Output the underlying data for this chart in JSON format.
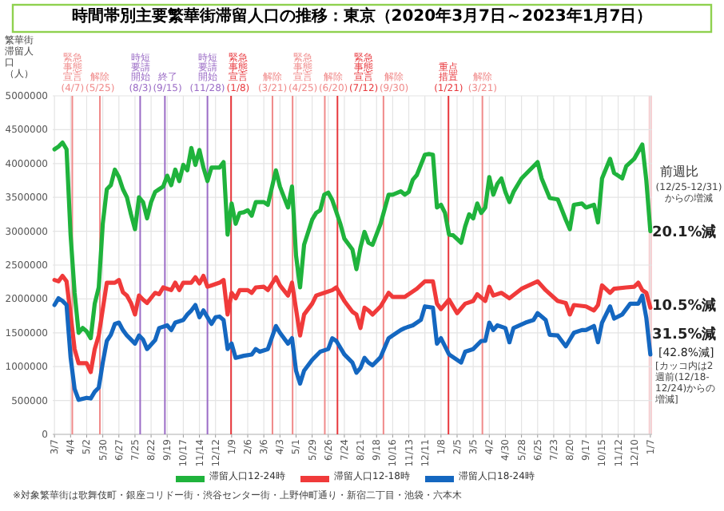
{
  "chart_data": {
    "type": "line",
    "title": "時間帯別主要繁華街滞留人口の推移：東京（2020年3月7日～2023年1月7日）",
    "ylabel": "繁華街滞留人口（人）",
    "xlim": [
      "2020-03-04",
      "2023-01-10"
    ],
    "ylim": [
      0,
      5000000
    ],
    "yticks": [
      0,
      500000,
      1000000,
      1500000,
      2000000,
      2500000,
      3000000,
      3500000,
      4000000,
      4500000,
      5000000
    ],
    "xticks": [
      {
        "value": "2020-03-07",
        "label": "3/7"
      },
      {
        "value": "2020-04-04",
        "label": "4/4"
      },
      {
        "value": "2020-05-02",
        "label": "5/2"
      },
      {
        "value": "2020-05-30",
        "label": "5/30"
      },
      {
        "value": "2020-06-27",
        "label": "6/27"
      },
      {
        "value": "2020-07-25",
        "label": "7/25"
      },
      {
        "value": "2020-08-22",
        "label": "8/22"
      },
      {
        "value": "2020-09-19",
        "label": "9/19"
      },
      {
        "value": "2020-10-17",
        "label": "10/17"
      },
      {
        "value": "2020-11-14",
        "label": "11/14"
      },
      {
        "value": "2020-12-12",
        "label": "12/12"
      },
      {
        "value": "2021-01-09",
        "label": "1/9"
      },
      {
        "value": "2021-02-06",
        "label": "2/6"
      },
      {
        "value": "2021-03-06",
        "label": "3/6"
      },
      {
        "value": "2021-04-03",
        "label": "4/3"
      },
      {
        "value": "2021-05-01",
        "label": "5/1"
      },
      {
        "value": "2021-05-29",
        "label": "5/29"
      },
      {
        "value": "2021-06-26",
        "label": "6/26"
      },
      {
        "value": "2021-07-24",
        "label": "7/24"
      },
      {
        "value": "2021-08-21",
        "label": "8/21"
      },
      {
        "value": "2021-09-18",
        "label": "9/18"
      },
      {
        "value": "2021-10-16",
        "label": "10/16"
      },
      {
        "value": "2021-11-13",
        "label": "11/13"
      },
      {
        "value": "2021-12-11",
        "label": "12/11"
      },
      {
        "value": "2022-01-08",
        "label": "1/8"
      },
      {
        "value": "2022-02-05",
        "label": "2/5"
      },
      {
        "value": "2022-03-05",
        "label": "3/5"
      },
      {
        "value": "2022-04-02",
        "label": "4/2"
      },
      {
        "value": "2022-04-30",
        "label": "4/30"
      },
      {
        "value": "2022-05-28",
        "label": "5/28"
      },
      {
        "value": "2022-06-25",
        "label": "6/25"
      },
      {
        "value": "2022-07-23",
        "label": "7/23"
      },
      {
        "value": "2022-08-20",
        "label": "8/20"
      },
      {
        "value": "2022-09-17",
        "label": "9/17"
      },
      {
        "value": "2022-10-15",
        "label": "10/15"
      },
      {
        "value": "2022-11-12",
        "label": "11/12"
      },
      {
        "value": "2022-12-10",
        "label": "12/10"
      },
      {
        "value": "2023-01-07",
        "label": "1/7"
      }
    ],
    "grid": true,
    "legend": "bottom",
    "marker": "none",
    "line_style": "solid",
    "series": [
      {
        "name": "滞留人口12-24時",
        "color": "#1fb33c",
        "x": [
          "2020-03-07",
          "2020-03-14",
          "2020-03-21",
          "2020-03-28",
          "2020-04-04",
          "2020-04-11",
          "2020-04-18",
          "2020-04-25",
          "2020-05-02",
          "2020-05-09",
          "2020-05-16",
          "2020-05-23",
          "2020-05-30",
          "2020-06-06",
          "2020-06-13",
          "2020-06-20",
          "2020-06-27",
          "2020-07-04",
          "2020-07-11",
          "2020-07-18",
          "2020-07-25",
          "2020-08-01",
          "2020-08-08",
          "2020-08-15",
          "2020-08-22",
          "2020-08-29",
          "2020-09-05",
          "2020-09-12",
          "2020-09-19",
          "2020-09-26",
          "2020-10-03",
          "2020-10-10",
          "2020-10-17",
          "2020-10-24",
          "2020-10-31",
          "2020-11-07",
          "2020-11-14",
          "2020-11-21",
          "2020-11-28",
          "2020-12-05",
          "2020-12-19",
          "2020-12-26",
          "2021-01-02",
          "2021-01-09",
          "2021-01-16",
          "2021-01-23",
          "2021-01-30",
          "2021-02-06",
          "2021-02-13",
          "2021-02-20",
          "2021-03-06",
          "2021-03-13",
          "2021-03-27",
          "2021-04-03",
          "2021-04-17",
          "2021-04-24",
          "2021-05-01",
          "2021-05-08",
          "2021-05-15",
          "2021-05-29",
          "2021-06-05",
          "2021-06-12",
          "2021-06-19",
          "2021-06-26",
          "2021-07-03",
          "2021-07-17",
          "2021-07-24",
          "2021-08-07",
          "2021-08-14",
          "2021-08-21",
          "2021-08-28",
          "2021-09-04",
          "2021-09-11",
          "2021-09-25",
          "2021-10-09",
          "2021-10-16",
          "2021-10-30",
          "2021-11-06",
          "2021-11-13",
          "2021-11-20",
          "2021-11-27",
          "2021-12-11",
          "2021-12-18",
          "2021-12-25",
          "2022-01-01",
          "2022-01-08",
          "2022-01-15",
          "2022-01-22",
          "2022-01-29",
          "2022-02-12",
          "2022-02-19",
          "2022-02-26",
          "2022-03-05",
          "2022-03-12",
          "2022-03-19",
          "2022-03-26",
          "2022-04-02",
          "2022-04-09",
          "2022-04-16",
          "2022-04-23",
          "2022-04-30",
          "2022-05-07",
          "2022-05-14",
          "2022-05-28",
          "2022-06-11",
          "2022-06-25",
          "2022-07-02",
          "2022-07-16",
          "2022-07-30",
          "2022-08-13",
          "2022-08-20",
          "2022-08-27",
          "2022-09-10",
          "2022-09-17",
          "2022-10-01",
          "2022-10-08",
          "2022-10-15",
          "2022-10-29",
          "2022-11-05",
          "2022-11-19",
          "2022-11-26",
          "2022-12-10",
          "2022-12-24",
          "2022-12-31",
          "2023-01-07"
        ],
        "values": [
          4210000,
          4250000,
          4310000,
          4210000,
          2950000,
          2090000,
          1500000,
          1570000,
          1520000,
          1420000,
          1930000,
          2170000,
          3110000,
          3620000,
          3680000,
          3910000,
          3800000,
          3620000,
          3500000,
          3250000,
          3030000,
          3500000,
          3430000,
          3190000,
          3430000,
          3580000,
          3620000,
          3660000,
          3820000,
          3680000,
          3910000,
          3740000,
          3980000,
          3900000,
          4230000,
          3980000,
          4200000,
          3940000,
          3740000,
          3940000,
          3940000,
          4020000,
          2950000,
          3410000,
          3110000,
          3270000,
          3280000,
          3310000,
          3230000,
          3430000,
          3430000,
          3390000,
          3900000,
          3660000,
          3350000,
          3660000,
          2640000,
          2170000,
          2800000,
          3170000,
          3270000,
          3310000,
          3540000,
          3570000,
          3460000,
          3110000,
          2890000,
          2730000,
          2440000,
          2760000,
          2990000,
          2830000,
          2800000,
          3110000,
          3540000,
          3540000,
          3590000,
          3540000,
          3580000,
          3760000,
          3830000,
          4130000,
          4140000,
          4130000,
          3350000,
          3390000,
          3270000,
          2950000,
          2940000,
          2830000,
          3070000,
          3250000,
          3190000,
          3410000,
          3270000,
          3350000,
          3800000,
          3540000,
          3700000,
          3780000,
          3580000,
          3430000,
          3580000,
          3780000,
          3900000,
          4020000,
          3780000,
          3490000,
          3470000,
          3170000,
          3030000,
          3390000,
          3410000,
          3350000,
          3390000,
          3130000,
          3780000,
          4070000,
          3860000,
          3780000,
          3960000,
          4070000,
          4280000,
          3750000,
          3000000
        ]
      },
      {
        "name": "滞留人口12-18時",
        "color": "#f03a3a",
        "x": [
          "2020-03-07",
          "2020-03-14",
          "2020-03-21",
          "2020-03-28",
          "2020-04-04",
          "2020-04-11",
          "2020-04-18",
          "2020-05-02",
          "2020-05-09",
          "2020-05-16",
          "2020-05-23",
          "2020-05-30",
          "2020-06-06",
          "2020-06-20",
          "2020-06-27",
          "2020-07-04",
          "2020-07-11",
          "2020-07-18",
          "2020-07-25",
          "2020-08-01",
          "2020-08-08",
          "2020-08-15",
          "2020-08-29",
          "2020-09-05",
          "2020-09-12",
          "2020-09-26",
          "2020-10-03",
          "2020-10-10",
          "2020-10-17",
          "2020-10-31",
          "2020-11-07",
          "2020-11-14",
          "2020-11-21",
          "2020-11-28",
          "2020-12-05",
          "2020-12-19",
          "2020-12-26",
          "2021-01-02",
          "2021-01-09",
          "2021-01-16",
          "2021-01-23",
          "2021-02-06",
          "2021-02-13",
          "2021-02-20",
          "2021-03-06",
          "2021-03-13",
          "2021-03-27",
          "2021-04-03",
          "2021-04-17",
          "2021-04-24",
          "2021-05-01",
          "2021-05-08",
          "2021-05-15",
          "2021-05-29",
          "2021-06-05",
          "2021-06-19",
          "2021-07-03",
          "2021-07-10",
          "2021-07-24",
          "2021-08-07",
          "2021-08-14",
          "2021-08-21",
          "2021-08-28",
          "2021-09-04",
          "2021-09-11",
          "2021-09-25",
          "2021-10-09",
          "2021-10-16",
          "2021-11-06",
          "2021-11-27",
          "2021-12-11",
          "2021-12-25",
          "2022-01-01",
          "2022-01-08",
          "2022-01-22",
          "2022-02-05",
          "2022-02-19",
          "2022-03-05",
          "2022-03-12",
          "2022-03-26",
          "2022-04-02",
          "2022-04-09",
          "2022-04-23",
          "2022-05-07",
          "2022-05-28",
          "2022-06-25",
          "2022-07-09",
          "2022-07-30",
          "2022-08-13",
          "2022-08-20",
          "2022-08-27",
          "2022-09-17",
          "2022-10-01",
          "2022-10-08",
          "2022-10-15",
          "2022-10-29",
          "2022-11-05",
          "2022-11-26",
          "2022-12-10",
          "2022-12-17",
          "2022-12-24",
          "2022-12-31",
          "2023-01-07"
        ],
        "values": [
          2280000,
          2260000,
          2340000,
          2260000,
          1770000,
          1260000,
          1050000,
          1050000,
          920000,
          1260000,
          1460000,
          1850000,
          2240000,
          2240000,
          2280000,
          2100000,
          2050000,
          1940000,
          1770000,
          2050000,
          1990000,
          1940000,
          2090000,
          2070000,
          2170000,
          2130000,
          2240000,
          2130000,
          2240000,
          2240000,
          2320000,
          2230000,
          2340000,
          2180000,
          2200000,
          2240000,
          2280000,
          1770000,
          2090000,
          2010000,
          2130000,
          2130000,
          2090000,
          2170000,
          2180000,
          2130000,
          2320000,
          2200000,
          2050000,
          2240000,
          1850000,
          1460000,
          1770000,
          1930000,
          2050000,
          2090000,
          2130000,
          2170000,
          1970000,
          1810000,
          1770000,
          1570000,
          1870000,
          1830000,
          1770000,
          1890000,
          2090000,
          2030000,
          2030000,
          2150000,
          2260000,
          2260000,
          1930000,
          1850000,
          1990000,
          1790000,
          1930000,
          1970000,
          2070000,
          1970000,
          2180000,
          2050000,
          2090000,
          2010000,
          2150000,
          2260000,
          2130000,
          1970000,
          1940000,
          1770000,
          1910000,
          1890000,
          1830000,
          1910000,
          2200000,
          2090000,
          2150000,
          2170000,
          2180000,
          2240000,
          2130000,
          2090000,
          1870000
        ]
      },
      {
        "name": "滞留人口18-24時",
        "color": "#1467c0",
        "x": [
          "2020-03-07",
          "2020-03-14",
          "2020-03-21",
          "2020-03-28",
          "2020-04-04",
          "2020-04-11",
          "2020-04-18",
          "2020-05-02",
          "2020-05-09",
          "2020-05-16",
          "2020-05-23",
          "2020-05-30",
          "2020-06-06",
          "2020-06-13",
          "2020-06-20",
          "2020-06-27",
          "2020-07-04",
          "2020-07-11",
          "2020-07-25",
          "2020-08-01",
          "2020-08-08",
          "2020-08-15",
          "2020-08-29",
          "2020-09-05",
          "2020-09-19",
          "2020-09-26",
          "2020-10-03",
          "2020-10-17",
          "2020-10-24",
          "2020-10-31",
          "2020-11-07",
          "2020-11-14",
          "2020-11-21",
          "2020-12-05",
          "2020-12-12",
          "2020-12-19",
          "2020-12-26",
          "2021-01-02",
          "2021-01-09",
          "2021-01-16",
          "2021-01-30",
          "2021-02-13",
          "2021-02-20",
          "2021-02-27",
          "2021-03-13",
          "2021-03-27",
          "2021-04-03",
          "2021-04-17",
          "2021-04-24",
          "2021-05-01",
          "2021-05-08",
          "2021-05-15",
          "2021-05-29",
          "2021-06-12",
          "2021-06-26",
          "2021-07-03",
          "2021-07-10",
          "2021-07-24",
          "2021-08-07",
          "2021-08-14",
          "2021-08-21",
          "2021-08-28",
          "2021-09-04",
          "2021-09-11",
          "2021-09-25",
          "2021-10-09",
          "2021-10-16",
          "2021-10-30",
          "2021-11-06",
          "2021-11-20",
          "2021-12-04",
          "2021-12-11",
          "2021-12-25",
          "2022-01-01",
          "2022-01-08",
          "2022-01-22",
          "2022-02-12",
          "2022-02-19",
          "2022-03-05",
          "2022-03-19",
          "2022-03-26",
          "2022-04-02",
          "2022-04-09",
          "2022-04-16",
          "2022-04-30",
          "2022-05-07",
          "2022-05-14",
          "2022-06-04",
          "2022-06-18",
          "2022-06-25",
          "2022-07-09",
          "2022-07-16",
          "2022-07-30",
          "2022-08-13",
          "2022-08-27",
          "2022-09-10",
          "2022-09-17",
          "2022-10-01",
          "2022-10-08",
          "2022-10-15",
          "2022-10-29",
          "2022-11-05",
          "2022-11-19",
          "2022-12-03",
          "2022-12-17",
          "2022-12-24",
          "2022-12-31",
          "2023-01-07"
        ],
        "values": [
          1910000,
          2010000,
          1970000,
          1910000,
          1140000,
          670000,
          510000,
          540000,
          530000,
          630000,
          690000,
          1060000,
          1380000,
          1470000,
          1630000,
          1650000,
          1540000,
          1460000,
          1340000,
          1460000,
          1400000,
          1260000,
          1390000,
          1570000,
          1610000,
          1540000,
          1650000,
          1690000,
          1770000,
          1830000,
          1910000,
          1730000,
          1830000,
          1630000,
          1730000,
          1740000,
          1690000,
          1260000,
          1340000,
          1130000,
          1160000,
          1180000,
          1260000,
          1220000,
          1260000,
          1600000,
          1500000,
          1340000,
          1420000,
          940000,
          750000,
          940000,
          1100000,
          1220000,
          1260000,
          1420000,
          1380000,
          1180000,
          1060000,
          910000,
          980000,
          1130000,
          1060000,
          1020000,
          1140000,
          1420000,
          1460000,
          1540000,
          1570000,
          1610000,
          1690000,
          1890000,
          1870000,
          1340000,
          1420000,
          1180000,
          1060000,
          1220000,
          1260000,
          1380000,
          1380000,
          1650000,
          1540000,
          1610000,
          1570000,
          1360000,
          1570000,
          1650000,
          1690000,
          1790000,
          1690000,
          1470000,
          1460000,
          1300000,
          1500000,
          1540000,
          1540000,
          1600000,
          1360000,
          1650000,
          1890000,
          1710000,
          1770000,
          1930000,
          1930000,
          2050000,
          1720000,
          1180000
        ]
      }
    ],
    "ref_lines": [
      {
        "axis": "x",
        "value": "2020-04-07",
        "label": "緊急事態宣言(4/7)",
        "color": "#f08a8a"
      },
      {
        "axis": "x",
        "value": "2020-05-25",
        "label": "解除(5/25)",
        "color": "#f08a8a"
      },
      {
        "axis": "x",
        "value": "2020-08-03",
        "label": "時短要請開始(8/3)",
        "color": "#9b6cc6"
      },
      {
        "axis": "x",
        "value": "2020-09-15",
        "label": "終了(9/15)",
        "color": "#9b6cc6"
      },
      {
        "axis": "x",
        "value": "2020-11-28",
        "label": "時短要請開始(11/28)",
        "color": "#9b6cc6"
      },
      {
        "axis": "x",
        "value": "2021-01-08",
        "label": "緊急事態宣言(1/8)",
        "color": "#e8383d"
      },
      {
        "axis": "x",
        "value": "2021-03-21",
        "label": "解除(3/21)",
        "color": "#f08a8a"
      },
      {
        "axis": "x",
        "value": "2021-04-25",
        "label": "緊急事態宣言(4/25)",
        "color": "#f08a8a"
      },
      {
        "axis": "x",
        "value": "2021-06-20",
        "label": "解除(6/20)",
        "color": "#f08a8a"
      },
      {
        "axis": "x",
        "value": "2021-07-12",
        "label": "緊急事態宣言(7/12)",
        "color": "#e8383d"
      },
      {
        "axis": "x",
        "value": "2021-09-30",
        "label": "解除(9/30)",
        "color": "#f08a8a"
      },
      {
        "axis": "x",
        "value": "2022-01-21",
        "label": "重点措置(1/21)",
        "color": "#e8383d"
      },
      {
        "axis": "x",
        "value": "2022-03-21",
        "label": "解除(3/21)",
        "color": "#f08a8a"
      }
    ],
    "bands": [
      {
        "axis": "x",
        "from": "2023-01-04",
        "to": "2023-01-10",
        "color": "#f9cdd0"
      }
    ],
    "annotations": [
      "前週比",
      "(12/25-12/31)からの増減",
      "20.1%減",
      "10.5%減",
      "31.5%減",
      "[42.8%減]",
      "[カッコ内は2週前(12/18-12/24)からの増減]",
      "※対象繁華街は歌舞伎町・銀座コリドー街・渋谷センター街・上野仲町通り・新宿二丁目・池袋・六本木"
    ]
  }
}
